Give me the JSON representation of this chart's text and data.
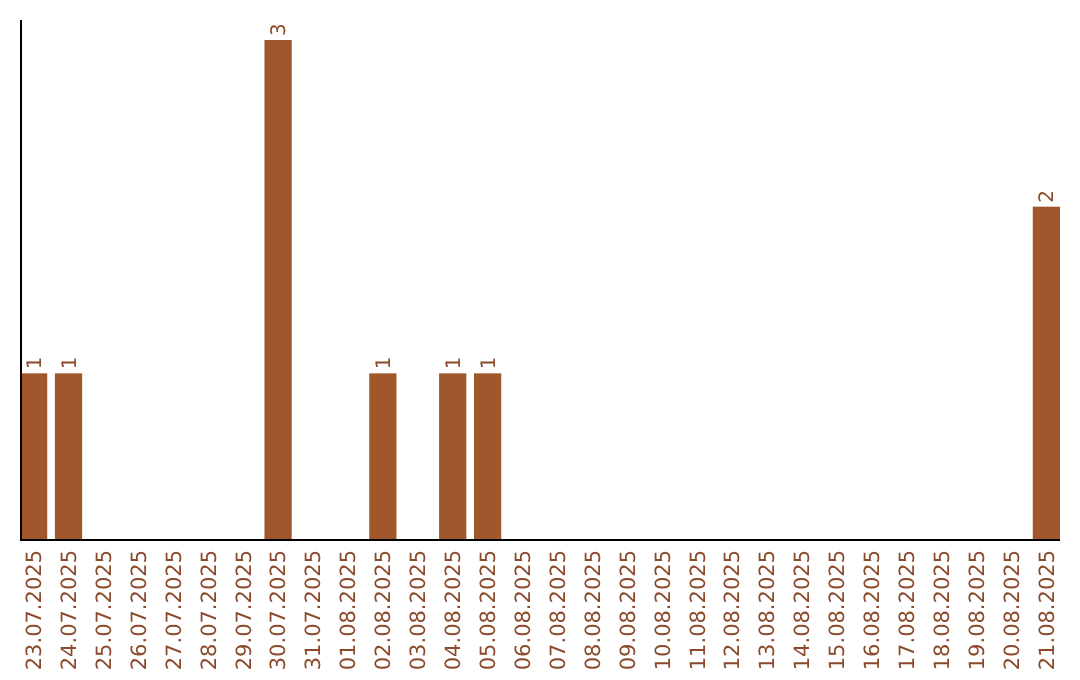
{
  "chart_data": {
    "type": "bar",
    "categories": [
      "23.07.2025",
      "24.07.2025",
      "25.07.2025",
      "26.07.2025",
      "27.07.2025",
      "28.07.2025",
      "29.07.2025",
      "30.07.2025",
      "31.07.2025",
      "01.08.2025",
      "02.08.2025",
      "03.08.2025",
      "04.08.2025",
      "05.08.2025",
      "06.08.2025",
      "07.08.2025",
      "08.08.2025",
      "09.08.2025",
      "10.08.2025",
      "11.08.2025",
      "12.08.2025",
      "13.08.2025",
      "14.08.2025",
      "15.08.2025",
      "16.08.2025",
      "17.08.2025",
      "18.08.2025",
      "19.08.2025",
      "20.08.2025",
      "21.08.2025"
    ],
    "values": [
      1,
      1,
      0,
      0,
      0,
      0,
      0,
      3,
      0,
      0,
      1,
      0,
      1,
      1,
      0,
      0,
      0,
      0,
      0,
      0,
      0,
      0,
      0,
      0,
      0,
      0,
      0,
      0,
      0,
      2
    ],
    "value_labels": [
      "1",
      "1",
      null,
      null,
      null,
      null,
      null,
      "3",
      null,
      null,
      "1",
      null,
      "1",
      "1",
      null,
      null,
      null,
      null,
      null,
      null,
      null,
      null,
      null,
      null,
      null,
      null,
      null,
      null,
      null,
      "2"
    ],
    "color": "#a0572b",
    "grid": false
  }
}
